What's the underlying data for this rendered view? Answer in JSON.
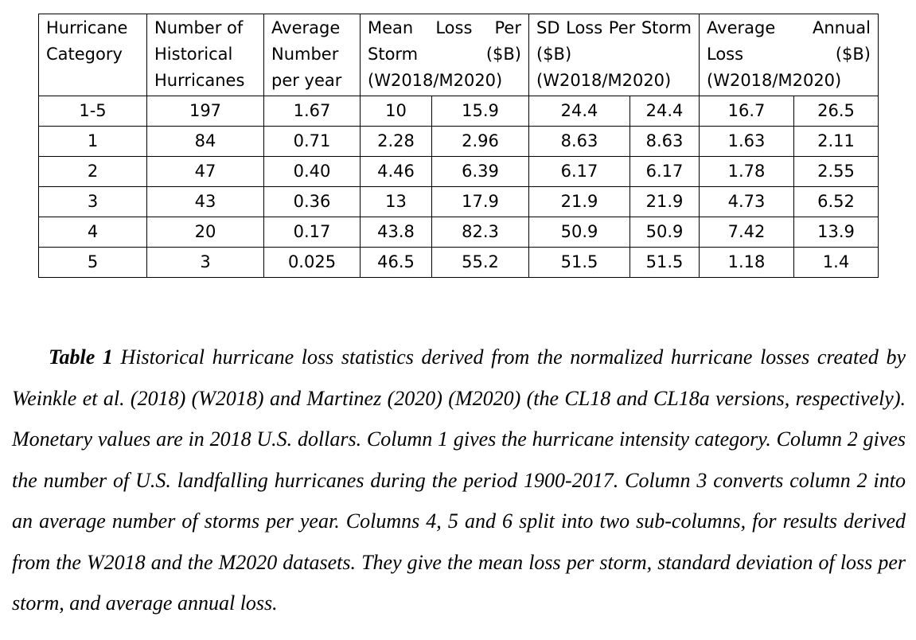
{
  "table": {
    "headers": {
      "category": "Hurricane Category",
      "number": "Number of Historical Hurricanes",
      "avg_per_year": "Average Number per year",
      "mean_loss": "Mean Loss Per Storm ($B) (W2018/M2020)",
      "sd_loss": "SD Loss Per Storm ($B) (W2018/M2020)",
      "annual_loss": "Average Annual Loss ($B) (W2018/M2020)"
    },
    "rows": [
      [
        "1-5",
        "197",
        "1.67",
        "10",
        "15.9",
        "24.4",
        "24.4",
        "16.7",
        "26.5"
      ],
      [
        "1",
        "84",
        "0.71",
        "2.28",
        "2.96",
        "8.63",
        "8.63",
        "1.63",
        "2.11"
      ],
      [
        "2",
        "47",
        "0.40",
        "4.46",
        "6.39",
        "6.17",
        "6.17",
        "1.78",
        "2.55"
      ],
      [
        "3",
        "43",
        "0.36",
        "13",
        "17.9",
        "21.9",
        "21.9",
        "4.73",
        "6.52"
      ],
      [
        "4",
        "20",
        "0.17",
        "43.8",
        "82.3",
        "50.9",
        "50.9",
        "7.42",
        "13.9"
      ],
      [
        "5",
        "3",
        "0.025",
        "46.5",
        "55.2",
        "51.5",
        "51.5",
        "1.18",
        "1.4"
      ]
    ]
  },
  "caption": {
    "label": "Table 1",
    "text": " Historical hurricane loss statistics derived from the normalized hurricane losses created by Weinkle et al. (2018) (W2018) and Martinez (2020) (M2020) (the CL18 and CL18a versions, respectively). Monetary values are in 2018 U.S. dollars. Column 1 gives the hurricane intensity category. Column 2 gives the number of U.S. landfalling hurricanes during the period 1900-2017. Column 3 converts column 2 into an average number of storms per year. Columns 4, 5 and 6 split into two sub-columns, for results derived from the W2018 and the M2020 datasets. They give the mean loss per storm, standard deviation of loss per storm, and average annual loss."
  }
}
